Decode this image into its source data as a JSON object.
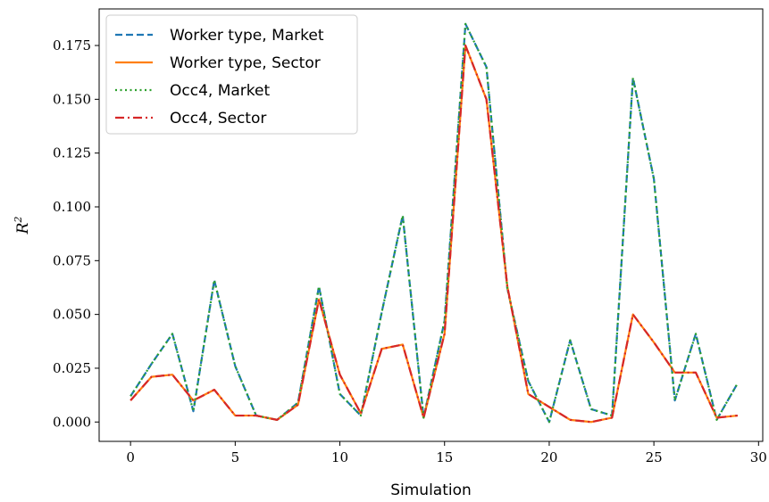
{
  "chart_data": {
    "type": "line",
    "xlabel": "Simulation",
    "ylabel": "R",
    "ylabel_superscript": "2",
    "xlim": [
      -1.5,
      30.2
    ],
    "ylim": [
      -0.009,
      0.192
    ],
    "xticks": [
      0,
      5,
      10,
      15,
      20,
      25,
      30
    ],
    "xtick_labels": [
      "0",
      "5",
      "10",
      "15",
      "20",
      "25",
      "30"
    ],
    "yticks": [
      0.0,
      0.025,
      0.05,
      0.075,
      0.1,
      0.125,
      0.15,
      0.175
    ],
    "ytick_labels": [
      "0.000",
      "0.025",
      "0.050",
      "0.075",
      "0.100",
      "0.125",
      "0.150",
      "0.175"
    ],
    "grid": false,
    "legend_position": "top-left",
    "x": [
      0,
      1,
      2,
      3,
      4,
      5,
      6,
      7,
      8,
      9,
      10,
      11,
      12,
      13,
      14,
      15,
      16,
      17,
      18,
      19,
      20,
      21,
      22,
      23,
      24,
      25,
      26,
      27,
      28,
      29
    ],
    "series": [
      {
        "name": "Worker type, Market",
        "color": "#1f77b4",
        "style": "dashed",
        "values": [
          0.012,
          0.027,
          0.041,
          0.005,
          0.066,
          0.026,
          0.003,
          0.001,
          0.009,
          0.063,
          0.013,
          0.003,
          0.051,
          0.096,
          0.002,
          0.047,
          0.185,
          0.165,
          0.062,
          0.019,
          0.0,
          0.038,
          0.006,
          0.003,
          0.16,
          0.113,
          0.01,
          0.041,
          0.001,
          0.018
        ]
      },
      {
        "name": "Worker type, Sector",
        "color": "#ff7f0e",
        "style": "solid",
        "values": [
          0.01,
          0.021,
          0.022,
          0.01,
          0.015,
          0.003,
          0.003,
          0.001,
          0.008,
          0.057,
          0.022,
          0.004,
          0.034,
          0.036,
          0.002,
          0.041,
          0.175,
          0.15,
          0.063,
          0.013,
          0.007,
          0.001,
          0.0,
          0.002,
          0.05,
          0.037,
          0.023,
          0.023,
          0.002,
          0.003
        ]
      },
      {
        "name": "Occ4, Market",
        "color": "#2ca02c",
        "style": "dotted",
        "values": [
          0.012,
          0.027,
          0.041,
          0.005,
          0.066,
          0.026,
          0.003,
          0.001,
          0.009,
          0.063,
          0.013,
          0.003,
          0.051,
          0.096,
          0.002,
          0.047,
          0.185,
          0.165,
          0.062,
          0.019,
          0.0,
          0.038,
          0.006,
          0.003,
          0.16,
          0.113,
          0.01,
          0.041,
          0.001,
          0.018
        ]
      },
      {
        "name": "Occ4, Sector",
        "color": "#d62728",
        "style": "dashdot",
        "values": [
          0.01,
          0.021,
          0.022,
          0.01,
          0.015,
          0.003,
          0.003,
          0.001,
          0.008,
          0.057,
          0.022,
          0.004,
          0.034,
          0.036,
          0.002,
          0.041,
          0.175,
          0.15,
          0.063,
          0.013,
          0.007,
          0.001,
          0.0,
          0.002,
          0.05,
          0.037,
          0.023,
          0.023,
          0.002,
          0.003
        ]
      }
    ]
  }
}
